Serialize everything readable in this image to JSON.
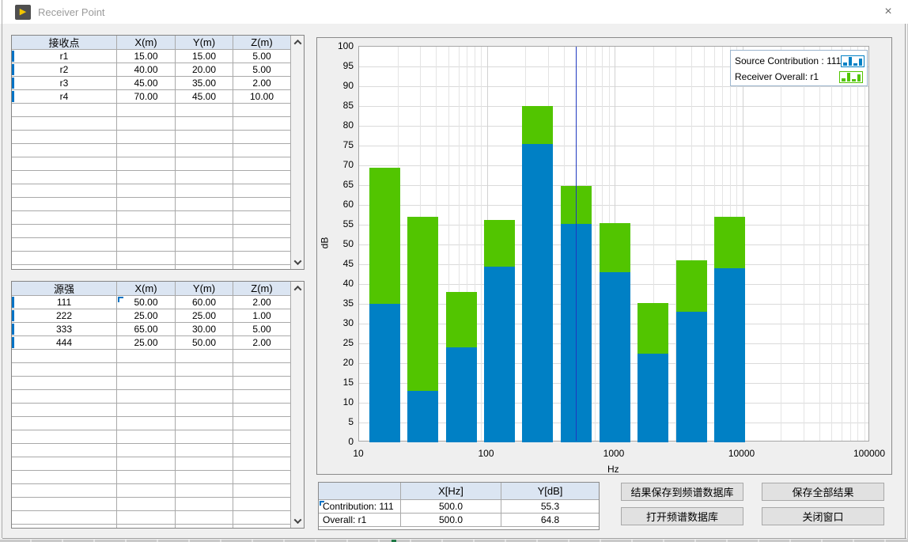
{
  "window": {
    "title": "Receiver Point",
    "close_glyph": "×",
    "icon_glyph": "▶"
  },
  "receiver_table": {
    "headers": [
      "接收点",
      "X(m)",
      "Y(m)",
      "Z(m)"
    ],
    "rows": [
      [
        "r1",
        "15.00",
        "15.00",
        "5.00"
      ],
      [
        "r2",
        "40.00",
        "20.00",
        "5.00"
      ],
      [
        "r3",
        "45.00",
        "35.00",
        "2.00"
      ],
      [
        "r4",
        "70.00",
        "45.00",
        "10.00"
      ]
    ]
  },
  "source_table": {
    "headers": [
      "源强",
      "X(m)",
      "Y(m)",
      "Z(m)"
    ],
    "rows": [
      [
        "111",
        "50.00",
        "60.00",
        "2.00"
      ],
      [
        "222",
        "25.00",
        "25.00",
        "1.00"
      ],
      [
        "333",
        "65.00",
        "30.00",
        "5.00"
      ],
      [
        "444",
        "25.00",
        "50.00",
        "2.00"
      ]
    ]
  },
  "chart_data": {
    "type": "bar",
    "stacked": true,
    "x_scale": "log",
    "x_range": [
      10,
      100000
    ],
    "ylim": [
      0,
      100
    ],
    "y_tick_step": 5,
    "x_ticks": [
      "10",
      "100",
      "1000",
      "10000",
      "100000"
    ],
    "xlabel": "Hz",
    "ylabel": "dB",
    "grid": true,
    "legend_position": "top-right",
    "categories": [
      16,
      31.5,
      63,
      125,
      250,
      500,
      1000,
      2000,
      4000,
      8000
    ],
    "series": [
      {
        "name": "Source Contribution : 111",
        "role": "contribution",
        "color": "#0080c5",
        "values": [
          35,
          13,
          24,
          44.5,
          75.5,
          55.3,
          43,
          22.5,
          33,
          44
        ]
      },
      {
        "name": "Receiver Overall: r1",
        "role": "overall-stack-top",
        "color": "#52c500",
        "values": [
          69.5,
          57,
          38,
          56.3,
          85,
          64.8,
          55.5,
          35.2,
          46,
          57
        ]
      }
    ],
    "cursor_x_hz": 500
  },
  "cursor_table": {
    "headers": [
      "",
      "X[Hz]",
      "Y[dB]"
    ],
    "rows": [
      [
        "Contribution: 111",
        "500.0",
        "55.3"
      ],
      [
        "Overall: r1",
        "500.0",
        "64.8"
      ]
    ]
  },
  "buttons": {
    "save_to_db": "结果保存到频谱数据库",
    "save_all": "保存全部结果",
    "open_db": "打开频谱数据库",
    "close_window": "关闭窗口"
  }
}
